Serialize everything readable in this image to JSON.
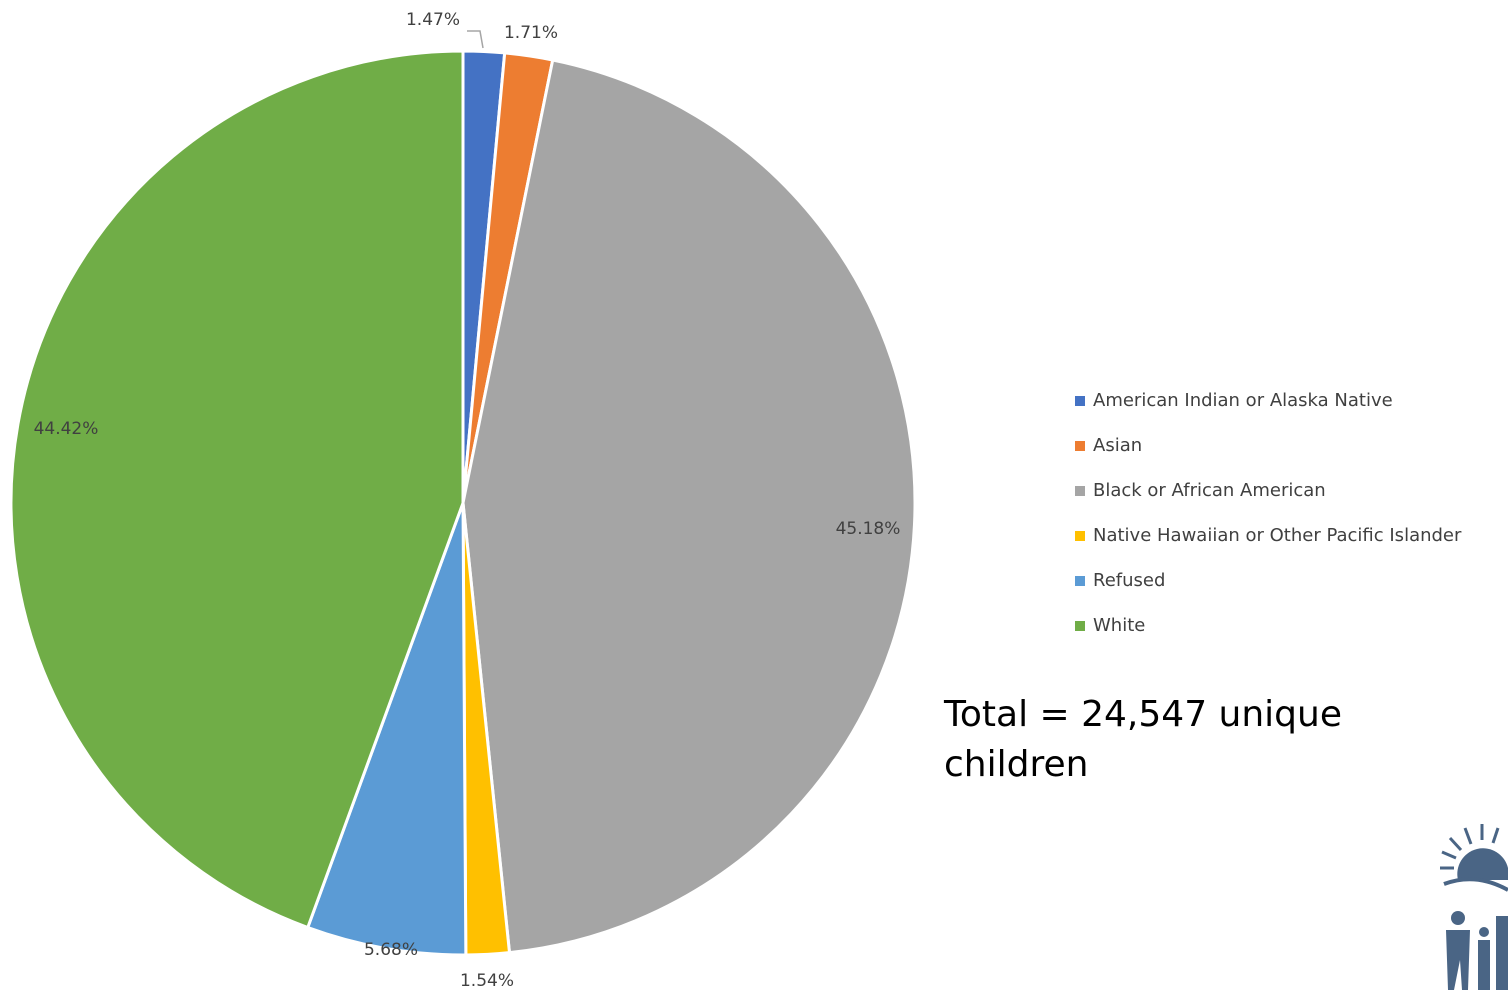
{
  "chart_data": {
    "type": "pie",
    "categories": [
      "American Indian or Alaska Native",
      "Asian",
      "Black or African American",
      "Native Hawaiian or Other Pacific Islander",
      "Refused",
      "White"
    ],
    "values": [
      1.47,
      1.71,
      45.18,
      1.54,
      5.68,
      44.42
    ],
    "labels": [
      "1.47%",
      "1.71%",
      "45.18%",
      "1.54%",
      "5.68%",
      "44.42%"
    ],
    "colors": [
      "#4472C4",
      "#ED7D31",
      "#A5A5A5",
      "#FFC000",
      "#5B9BD5",
      "#70AD47"
    ],
    "legend_position": "right",
    "start_angle": "12 o'clock",
    "direction": "clockwise"
  },
  "annotation": {
    "total_text": "Total = 24,547 unique children"
  },
  "logo": {
    "icon": "sun-family-logo-icon",
    "color": "#4A6585"
  }
}
